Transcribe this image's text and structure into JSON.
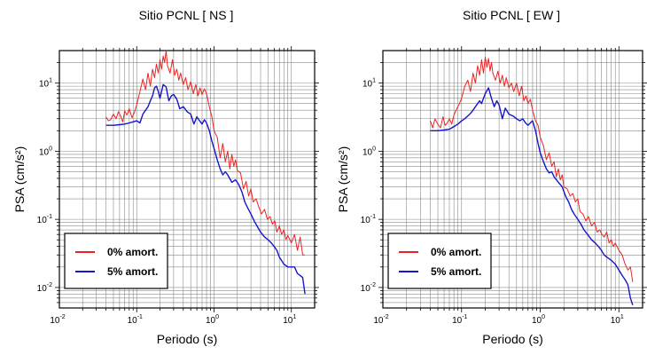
{
  "chart_data": [
    {
      "type": "line",
      "title": "Sitio PCNL [ NS ]",
      "xlabel": "Periodo (s)",
      "ylabel": "PSA (cm/s²)",
      "xscale": "log",
      "yscale": "log",
      "xlim": [
        0.01,
        20
      ],
      "ylim": [
        0.005,
        30
      ],
      "x_ticks": [
        {
          "base": "10",
          "exp": "-2"
        },
        {
          "base": "10",
          "exp": "-1"
        },
        {
          "base": "10",
          "exp": "0"
        },
        {
          "base": "10",
          "exp": "1"
        }
      ],
      "y_ticks": [
        {
          "base": "10",
          "exp": "-2"
        },
        {
          "base": "10",
          "exp": "-1"
        },
        {
          "base": "10",
          "exp": "0"
        },
        {
          "base": "10",
          "exp": "1"
        }
      ],
      "grid": true,
      "legend_position": "bottom-left",
      "series": [
        {
          "name": "0% amort.",
          "color": "#ee2222",
          "x": [
            0.04,
            0.043,
            0.046,
            0.05,
            0.054,
            0.058,
            0.062,
            0.066,
            0.07,
            0.075,
            0.08,
            0.087,
            0.094,
            0.1,
            0.11,
            0.12,
            0.13,
            0.14,
            0.15,
            0.16,
            0.17,
            0.18,
            0.19,
            0.2,
            0.21,
            0.22,
            0.23,
            0.24,
            0.25,
            0.27,
            0.29,
            0.31,
            0.33,
            0.35,
            0.37,
            0.4,
            0.43,
            0.46,
            0.5,
            0.54,
            0.58,
            0.62,
            0.66,
            0.7,
            0.75,
            0.8,
            0.87,
            0.94,
            1.0,
            1.1,
            1.2,
            1.3,
            1.4,
            1.5,
            1.6,
            1.7,
            1.8,
            1.9,
            2.0,
            2.2,
            2.4,
            2.6,
            2.8,
            3.0,
            3.2,
            3.5,
            3.8,
            4.1,
            4.5,
            4.9,
            5.3,
            5.7,
            6.1,
            6.5,
            7.0,
            7.5,
            8.0,
            8.5,
            9.0,
            10,
            11,
            12,
            13,
            14,
            15
          ],
          "values": [
            3.2,
            2.8,
            2.9,
            3.5,
            3.0,
            3.8,
            3.3,
            2.7,
            3.9,
            3.4,
            4.2,
            3.1,
            3.8,
            4.8,
            7.5,
            11.5,
            8.0,
            14.0,
            9.0,
            16.0,
            12.0,
            19.0,
            14.0,
            22.0,
            16.0,
            25.0,
            20.0,
            30.0,
            18.0,
            14.0,
            22.0,
            13.0,
            16.0,
            11.0,
            14.0,
            9.5,
            12.0,
            8.0,
            10.5,
            7.0,
            9.5,
            6.5,
            8.5,
            6.8,
            8.2,
            7.0,
            4.5,
            3.2,
            2.0,
            1.6,
            0.8,
            1.3,
            0.7,
            1.0,
            0.55,
            0.9,
            0.6,
            0.75,
            0.52,
            0.48,
            0.28,
            0.36,
            0.22,
            0.28,
            0.18,
            0.2,
            0.15,
            0.12,
            0.14,
            0.1,
            0.11,
            0.085,
            0.095,
            0.065,
            0.08,
            0.06,
            0.07,
            0.05,
            0.058,
            0.045,
            0.06,
            0.035,
            0.055,
            0.03,
            0.03
          ]
        },
        {
          "name": "5% amort.",
          "color": "#1515cc",
          "x": [
            0.04,
            0.05,
            0.06,
            0.07,
            0.08,
            0.09,
            0.1,
            0.11,
            0.12,
            0.13,
            0.14,
            0.15,
            0.16,
            0.17,
            0.18,
            0.19,
            0.2,
            0.22,
            0.24,
            0.26,
            0.28,
            0.3,
            0.33,
            0.36,
            0.4,
            0.45,
            0.5,
            0.55,
            0.6,
            0.65,
            0.7,
            0.75,
            0.8,
            0.87,
            0.94,
            1.0,
            1.1,
            1.2,
            1.3,
            1.4,
            1.5,
            1.7,
            1.9,
            2.1,
            2.3,
            2.5,
            2.7,
            3.0,
            3.3,
            3.6,
            4.0,
            4.5,
            5.0,
            5.5,
            6.0,
            6.5,
            7.0,
            8.0,
            9.0,
            10,
            11,
            12,
            13,
            14,
            15
          ],
          "values": [
            2.4,
            2.4,
            2.45,
            2.5,
            2.6,
            2.7,
            2.8,
            2.6,
            3.5,
            4.0,
            4.5,
            5.5,
            6.5,
            8.5,
            9.0,
            7.5,
            6.0,
            9.5,
            8.8,
            5.5,
            6.5,
            6.8,
            5.8,
            4.2,
            4.5,
            3.8,
            3.5,
            2.5,
            3.2,
            2.8,
            2.5,
            2.9,
            2.6,
            2.0,
            1.4,
            1.1,
            0.75,
            0.55,
            0.45,
            0.5,
            0.45,
            0.35,
            0.38,
            0.32,
            0.25,
            0.18,
            0.15,
            0.12,
            0.095,
            0.08,
            0.065,
            0.055,
            0.05,
            0.045,
            0.04,
            0.035,
            0.028,
            0.022,
            0.02,
            0.02,
            0.02,
            0.016,
            0.015,
            0.014,
            0.008
          ]
        }
      ]
    },
    {
      "type": "line",
      "title": "Sitio PCNL [ EW ]",
      "xlabel": "Periodo (s)",
      "ylabel": "PSA (cm/s²)",
      "xscale": "log",
      "yscale": "log",
      "xlim": [
        0.01,
        20
      ],
      "ylim": [
        0.005,
        30
      ],
      "x_ticks": [
        {
          "base": "10",
          "exp": "-2"
        },
        {
          "base": "10",
          "exp": "-1"
        },
        {
          "base": "10",
          "exp": "0"
        },
        {
          "base": "10",
          "exp": "1"
        }
      ],
      "y_ticks": [
        {
          "base": "10",
          "exp": "-2"
        },
        {
          "base": "10",
          "exp": "-1"
        },
        {
          "base": "10",
          "exp": "0"
        },
        {
          "base": "10",
          "exp": "1"
        }
      ],
      "grid": true,
      "legend_position": "bottom-left",
      "series": [
        {
          "name": "0% amort.",
          "color": "#ee2222",
          "x": [
            0.04,
            0.043,
            0.046,
            0.05,
            0.054,
            0.058,
            0.062,
            0.066,
            0.07,
            0.075,
            0.08,
            0.087,
            0.094,
            0.1,
            0.11,
            0.12,
            0.13,
            0.14,
            0.15,
            0.16,
            0.17,
            0.18,
            0.19,
            0.2,
            0.21,
            0.22,
            0.23,
            0.24,
            0.25,
            0.27,
            0.29,
            0.31,
            0.33,
            0.35,
            0.37,
            0.4,
            0.43,
            0.46,
            0.5,
            0.54,
            0.58,
            0.62,
            0.66,
            0.7,
            0.75,
            0.8,
            0.87,
            0.94,
            1.0,
            1.1,
            1.2,
            1.3,
            1.4,
            1.5,
            1.6,
            1.7,
            1.8,
            1.9,
            2.0,
            2.2,
            2.4,
            2.6,
            2.8,
            3.0,
            3.2,
            3.5,
            3.8,
            4.1,
            4.5,
            4.9,
            5.3,
            5.7,
            6.1,
            6.5,
            7.0,
            7.5,
            8.0,
            8.5,
            9.0,
            10,
            11,
            12,
            13,
            14,
            15
          ],
          "values": [
            2.8,
            2.2,
            3.0,
            2.5,
            2.2,
            3.2,
            2.4,
            2.6,
            3.0,
            2.5,
            3.4,
            4.2,
            5.0,
            6.0,
            9.0,
            11.0,
            7.5,
            14.0,
            10.0,
            18.0,
            13.0,
            22.0,
            14.0,
            24.0,
            17.0,
            23.0,
            15.0,
            20.0,
            14.0,
            11.0,
            15.0,
            10.0,
            13.0,
            9.0,
            12.0,
            8.5,
            10.0,
            7.5,
            10.0,
            6.5,
            9.0,
            5.5,
            6.5,
            5.0,
            5.8,
            4.0,
            2.8,
            2.4,
            1.6,
            1.2,
            0.75,
            0.95,
            0.6,
            0.7,
            0.42,
            0.55,
            0.38,
            0.45,
            0.3,
            0.28,
            0.22,
            0.24,
            0.18,
            0.2,
            0.13,
            0.12,
            0.095,
            0.11,
            0.08,
            0.09,
            0.065,
            0.07,
            0.06,
            0.055,
            0.065,
            0.045,
            0.05,
            0.04,
            0.045,
            0.035,
            0.03,
            0.022,
            0.018,
            0.02,
            0.012
          ]
        },
        {
          "name": "5% amort.",
          "color": "#1515cc",
          "x": [
            0.04,
            0.05,
            0.06,
            0.07,
            0.08,
            0.09,
            0.1,
            0.11,
            0.12,
            0.13,
            0.14,
            0.15,
            0.16,
            0.17,
            0.18,
            0.19,
            0.2,
            0.22,
            0.24,
            0.26,
            0.28,
            0.3,
            0.33,
            0.36,
            0.4,
            0.45,
            0.5,
            0.55,
            0.6,
            0.65,
            0.7,
            0.75,
            0.8,
            0.87,
            0.94,
            1.0,
            1.1,
            1.2,
            1.3,
            1.4,
            1.5,
            1.7,
            1.9,
            2.1,
            2.3,
            2.5,
            2.7,
            3.0,
            3.3,
            3.6,
            4.0,
            4.5,
            5.0,
            5.5,
            6.0,
            6.5,
            7.0,
            8.0,
            9.0,
            10,
            11,
            12,
            13,
            14,
            15
          ],
          "values": [
            2.0,
            2.0,
            2.05,
            2.1,
            2.3,
            2.5,
            2.8,
            3.0,
            3.3,
            3.6,
            4.0,
            4.5,
            5.0,
            5.5,
            5.0,
            6.0,
            7.0,
            8.5,
            6.0,
            4.5,
            5.5,
            4.8,
            3.0,
            4.3,
            3.5,
            3.3,
            3.0,
            2.8,
            3.0,
            2.6,
            2.4,
            2.6,
            2.8,
            2.0,
            1.3,
            0.95,
            0.7,
            0.55,
            0.48,
            0.5,
            0.42,
            0.35,
            0.3,
            0.22,
            0.18,
            0.14,
            0.12,
            0.1,
            0.085,
            0.07,
            0.06,
            0.05,
            0.045,
            0.04,
            0.035,
            0.03,
            0.028,
            0.025,
            0.022,
            0.018,
            0.015,
            0.013,
            0.011,
            0.007,
            0.0055
          ]
        }
      ]
    }
  ]
}
